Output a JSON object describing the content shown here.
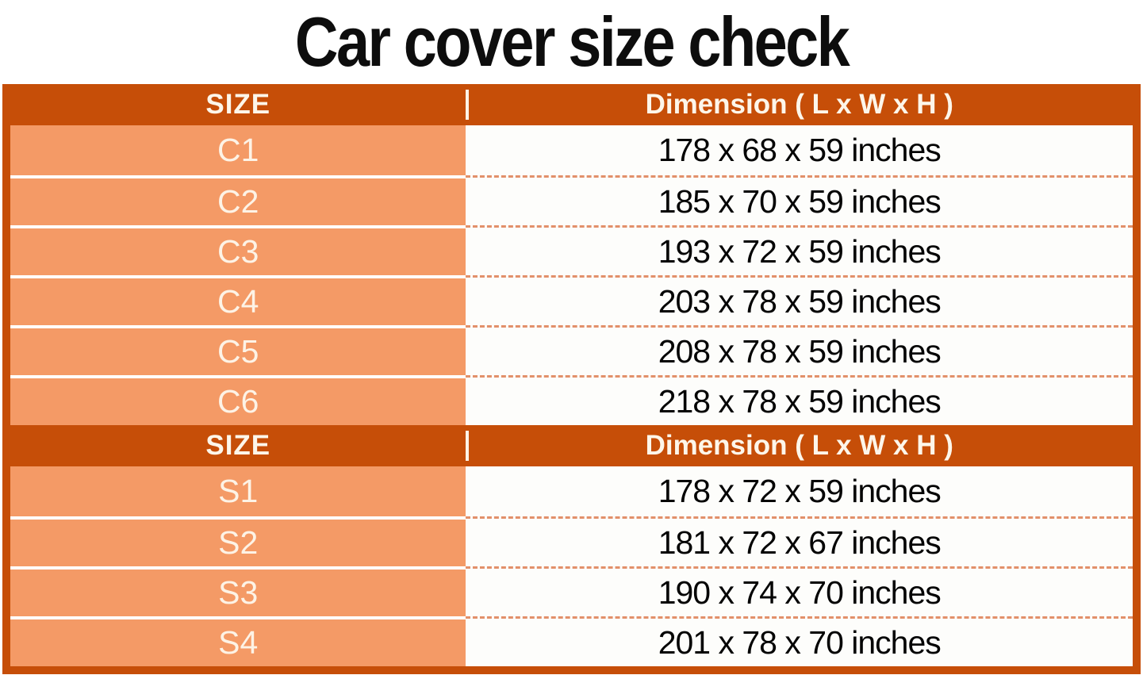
{
  "title": "Car cover size check",
  "colors": {
    "header_bg": "#C64E08",
    "size_cell_bg": "#F49A66",
    "dashed_separator": "#E2906A",
    "header_text": "#FDF6EA",
    "size_text": "#FDF3E6",
    "dimension_text": "#040404",
    "title_text": "#0D0D0D"
  },
  "table": {
    "sections": [
      {
        "header": {
          "size_label": "SIZE",
          "dimension_label": "Dimension ( L x W x H )"
        },
        "rows": [
          {
            "size": "C1",
            "dimension": "178 x 68 x 59 inches"
          },
          {
            "size": "C2",
            "dimension": "185 x 70 x 59 inches"
          },
          {
            "size": "C3",
            "dimension": "193 x 72 x 59 inches"
          },
          {
            "size": "C4",
            "dimension": "203 x 78 x 59 inches"
          },
          {
            "size": "C5",
            "dimension": "208 x 78 x 59 inches"
          },
          {
            "size": "C6",
            "dimension": "218 x 78 x 59 inches"
          }
        ]
      },
      {
        "header": {
          "size_label": "SIZE",
          "dimension_label": "Dimension ( L x W x H )"
        },
        "rows": [
          {
            "size": "S1",
            "dimension": "178 x 72 x 59 inches"
          },
          {
            "size": "S2",
            "dimension": "181 x 72 x 67 inches"
          },
          {
            "size": "S3",
            "dimension": "190 x 74 x 70 inches"
          },
          {
            "size": "S4",
            "dimension": "201 x 78 x 70 inches"
          }
        ]
      }
    ]
  },
  "chart_data": {
    "type": "table",
    "title": "Car cover size check",
    "columns": [
      "SIZE",
      "Dimension ( L x W x H )"
    ],
    "rows": [
      [
        "C1",
        "178 x 68 x 59 inches"
      ],
      [
        "C2",
        "185 x 70 x 59 inches"
      ],
      [
        "C3",
        "193 x 72 x 59 inches"
      ],
      [
        "C4",
        "203 x 78 x 59 inches"
      ],
      [
        "C5",
        "208 x 78 x 59 inches"
      ],
      [
        "C6",
        "218 x 78 x 59 inches"
      ],
      [
        "S1",
        "178 x 72 x 59 inches"
      ],
      [
        "S2",
        "181 x 72 x 67 inches"
      ],
      [
        "S3",
        "190 x 74 x 70 inches"
      ],
      [
        "S4",
        "201 x 78 x 70 inches"
      ]
    ]
  }
}
